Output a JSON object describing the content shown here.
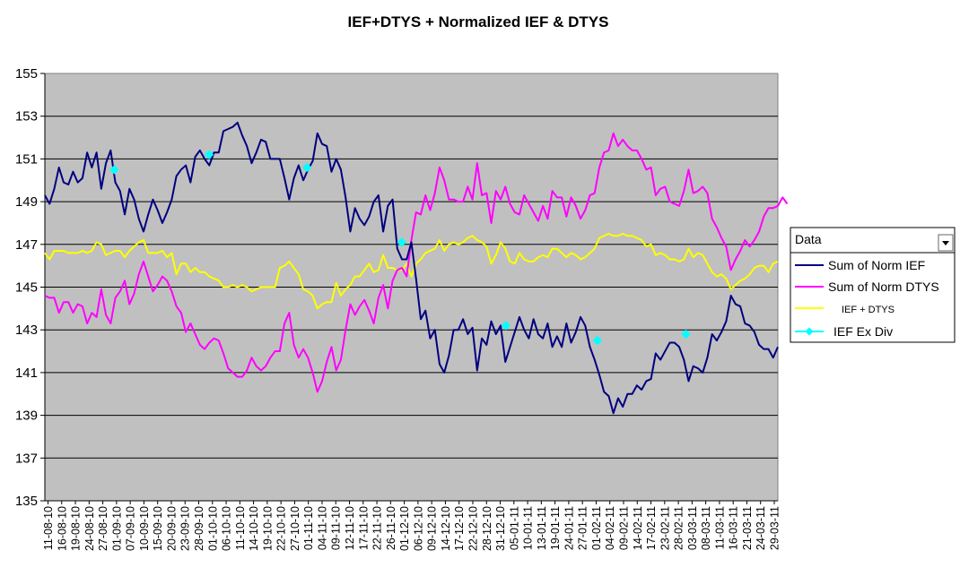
{
  "chart_data": {
    "type": "line",
    "title": "IEF+DTYS + Normalized IEF & DTYS",
    "ylim": [
      135,
      155
    ],
    "yticks": [
      135,
      137,
      139,
      141,
      143,
      145,
      147,
      149,
      151,
      153,
      155
    ],
    "grid": true,
    "legend_position": "right",
    "dropdown_label": "Data",
    "x_labels": [
      "11-08-10",
      "16-08-10",
      "19-08-10",
      "24-08-10",
      "27-08-10",
      "01-09-10",
      "07-09-10",
      "10-09-10",
      "15-09-10",
      "20-09-10",
      "23-09-10",
      "28-09-10",
      "01-10-10",
      "06-10-10",
      "11-10-10",
      "14-10-10",
      "19-10-10",
      "22-10-10",
      "27-10-10",
      "01-11-10",
      "04-11-10",
      "09-11-10",
      "12-11-10",
      "17-11-10",
      "22-11-10",
      "26-11-10",
      "01-12-10",
      "06-12-10",
      "09-12-10",
      "14-12-10",
      "17-12-10",
      "22-12-10",
      "28-12-10",
      "31-12-10",
      "05-01-11",
      "10-01-11",
      "13-01-11",
      "19-01-11",
      "24-01-11",
      "27-01-11",
      "01-02-11",
      "04-02-11",
      "09-02-11",
      "14-02-11",
      "17-02-11",
      "23-02-11",
      "28-02-11",
      "03-03-11",
      "08-03-11",
      "11-03-11",
      "16-03-11",
      "21-03-11",
      "24-03-11",
      "29-03-11"
    ],
    "series": [
      {
        "name": "Sum of Norm IEF",
        "color": "#000080",
        "marker": "none",
        "values": [
          149.3,
          148.9,
          149.6,
          150.6,
          149.9,
          149.8,
          150.4,
          149.9,
          150.1,
          151.3,
          150.6,
          151.3,
          149.6,
          150.8,
          151.4,
          149.9,
          149.5,
          148.4,
          149.6,
          149.1,
          148.2,
          147.6,
          148.4,
          149.1,
          148.6,
          148.0,
          148.5,
          149.1,
          150.2,
          150.5,
          150.7,
          149.9,
          151.1,
          151.4,
          151.0,
          150.7,
          151.3,
          151.3,
          152.3,
          152.4,
          152.5,
          152.7,
          152.1,
          151.6,
          150.8,
          151.3,
          151.9,
          151.8,
          151.0,
          151.0,
          151.0,
          150.1,
          149.1,
          150.1,
          150.7,
          150.0,
          150.5,
          150.9,
          152.2,
          151.7,
          151.6,
          150.4,
          151.0,
          150.5,
          149.2,
          147.6,
          148.7,
          148.2,
          147.9,
          148.3,
          149.0,
          149.3,
          147.6,
          148.8,
          149.1,
          146.8,
          146.3,
          146.3,
          147.1,
          145.4,
          143.5,
          143.9,
          142.6,
          143.0,
          141.4,
          141.0,
          141.8,
          143.0,
          143.0,
          143.5,
          142.8,
          143.1,
          141.1,
          142.6,
          142.3,
          143.4,
          142.8,
          143.2,
          141.5,
          142.2,
          142.9,
          143.6,
          143.0,
          142.6,
          143.5,
          142.8,
          142.6,
          143.3,
          142.2,
          142.7,
          142.2,
          143.3,
          142.4,
          142.9,
          143.6,
          143.2,
          142.2,
          141.6,
          140.9,
          140.1,
          139.9,
          139.1,
          139.8,
          139.4,
          140.0,
          140.0,
          140.4,
          140.2,
          140.6,
          140.7,
          141.9,
          141.6,
          142.0,
          142.4,
          142.4,
          142.2,
          141.6,
          140.6,
          141.3,
          141.2,
          141.0,
          141.7,
          142.8,
          142.5,
          142.9,
          143.4,
          144.6,
          144.2,
          144.1,
          143.3,
          143.2,
          142.9,
          142.3,
          142.1,
          142.1,
          141.7,
          142.2
        ]
      },
      {
        "name": "Sum of Norm DTYS",
        "color": "#ff00ff",
        "marker": "none",
        "values": [
          144.6,
          144.5,
          144.5,
          143.8,
          144.3,
          144.3,
          143.8,
          144.2,
          144.1,
          143.3,
          143.8,
          143.6,
          144.9,
          143.7,
          143.3,
          144.5,
          144.8,
          145.3,
          144.2,
          144.7,
          145.6,
          146.2,
          145.5,
          144.8,
          145.1,
          145.5,
          145.3,
          144.8,
          144.1,
          143.8,
          142.9,
          143.3,
          142.8,
          142.3,
          142.1,
          142.4,
          142.6,
          142.5,
          141.9,
          141.2,
          141.0,
          140.8,
          140.8,
          141.1,
          141.7,
          141.3,
          141.1,
          141.3,
          141.7,
          142.0,
          142.0,
          143.3,
          143.8,
          142.3,
          141.7,
          142.1,
          141.7,
          141.0,
          140.1,
          140.6,
          141.5,
          142.2,
          141.1,
          141.6,
          143.0,
          144.2,
          143.7,
          144.1,
          144.4,
          143.9,
          143.3,
          144.5,
          145.1,
          144.0,
          145.3,
          145.8,
          145.9,
          145.5,
          147.2,
          148.5,
          148.4,
          149.3,
          148.6,
          149.4,
          150.6,
          150.0,
          149.1,
          149.1,
          149.0,
          149.0,
          149.7,
          149.1,
          150.8,
          149.3,
          149.4,
          148.0,
          149.5,
          149.1,
          149.7,
          148.9,
          148.5,
          148.4,
          149.3,
          148.9,
          148.5,
          148.1,
          148.8,
          148.2,
          149.5,
          149.2,
          149.2,
          148.3,
          149.2,
          148.8,
          148.2,
          148.6,
          149.3,
          149.4,
          150.6,
          151.3,
          151.4,
          152.2,
          151.6,
          151.9,
          151.6,
          151.4,
          151.4,
          151.0,
          150.5,
          150.6,
          149.3,
          149.6,
          149.7,
          149.0,
          148.9,
          148.8,
          149.5,
          150.5,
          149.4,
          149.5,
          149.7,
          149.4,
          148.2,
          147.8,
          147.3,
          146.9,
          145.8,
          146.3,
          146.7,
          147.2,
          146.9,
          147.2,
          147.6,
          148.3,
          148.7,
          148.7,
          148.8,
          149.2,
          148.9
        ]
      },
      {
        "name": "IEF + DTYS",
        "color": "#ffff00",
        "marker": "none",
        "values": [
          146.6,
          146.3,
          146.7,
          146.7,
          146.7,
          146.6,
          146.6,
          146.6,
          146.7,
          146.6,
          146.7,
          147.1,
          147.0,
          146.5,
          146.6,
          146.7,
          146.7,
          146.4,
          146.7,
          146.9,
          147.1,
          147.2,
          146.6,
          146.6,
          146.6,
          146.7,
          146.4,
          146.6,
          145.6,
          146.1,
          146.1,
          145.7,
          145.9,
          145.7,
          145.7,
          145.5,
          145.4,
          145.3,
          145.0,
          145.0,
          145.1,
          145.0,
          145.1,
          145.0,
          144.8,
          144.9,
          145.0,
          145.0,
          145.0,
          145.0,
          145.9,
          146.0,
          146.2,
          145.9,
          145.6,
          144.9,
          144.8,
          144.6,
          144.0,
          144.2,
          144.3,
          144.3,
          145.2,
          144.6,
          144.9,
          145.1,
          145.5,
          145.5,
          145.8,
          146.1,
          145.7,
          145.8,
          146.5,
          145.9,
          145.9,
          145.8,
          145.8,
          146.1,
          145.5,
          146.1,
          146.3,
          146.6,
          146.7,
          146.8,
          147.2,
          146.7,
          147.0,
          147.1,
          147.0,
          147.1,
          147.3,
          147.4,
          147.2,
          147.1,
          146.9,
          146.1,
          146.5,
          147.1,
          146.8,
          146.2,
          146.1,
          146.6,
          146.3,
          146.2,
          146.2,
          146.4,
          146.5,
          146.4,
          146.8,
          146.8,
          146.6,
          146.4,
          146.6,
          146.5,
          146.3,
          146.4,
          146.6,
          146.8,
          147.3,
          147.4,
          147.5,
          147.4,
          147.4,
          147.5,
          147.4,
          147.4,
          147.3,
          147.2,
          146.9,
          147.0,
          146.5,
          146.6,
          146.5,
          146.3,
          146.3,
          146.2,
          146.3,
          146.8,
          146.4,
          146.6,
          146.5,
          146.1,
          145.7,
          145.5,
          145.6,
          145.4,
          144.9,
          145.1,
          145.3,
          145.4,
          145.6,
          145.9,
          146.0,
          146.0,
          145.7,
          146.1,
          146.2
        ]
      },
      {
        "name": "IEF Ex Div",
        "color": "#00ffff",
        "marker": "diamond",
        "points": [
          {
            "x": "01-09-10",
            "y": 150.5
          },
          {
            "x": "01-10-10",
            "y": 151.2
          },
          {
            "x": "01-11-10",
            "y": 150.6
          },
          {
            "x": "01-12-10",
            "y": 147.1
          },
          {
            "x": "03-01-11",
            "y": 143.2
          },
          {
            "x": "01-02-11",
            "y": 142.5
          },
          {
            "x": "01-03-11",
            "y": 142.8
          }
        ]
      }
    ]
  }
}
